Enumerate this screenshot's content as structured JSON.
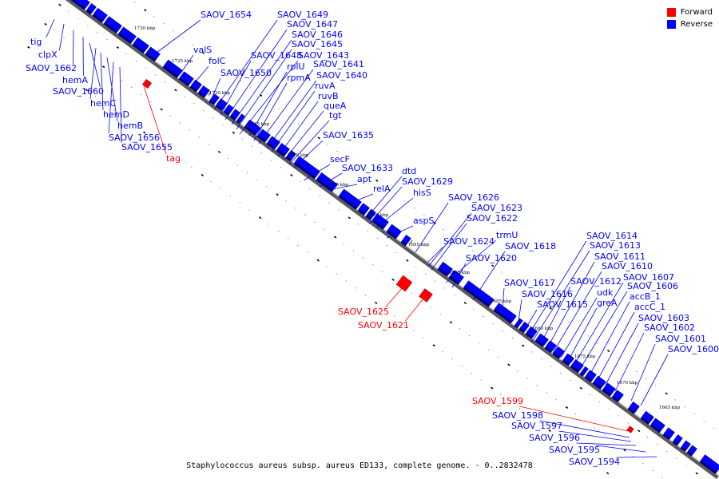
{
  "legend": {
    "forward_label": "Forward",
    "reverse_label": "Reverse",
    "forward_color": "#ff0000",
    "reverse_color": "#0000ff"
  },
  "caption": "Staphylococcus aureus subsp. aureus ED133, complete genome. - 0..2832478",
  "ticks": [
    "1730 kbp",
    "1725 kbp",
    "1720 kbp",
    "1715 kbp",
    "1710 kbp",
    "1705 kbp",
    "1700 kbp",
    "1695 kbp",
    "1690 kbp",
    "1685 kbp",
    "1680 kbp",
    "1675 kbp",
    "1670 kbp",
    "1665 kbp"
  ],
  "reverse_genes": [
    "tig",
    "clpX",
    "SAOV_1662",
    "hemA",
    "SAOV_1660",
    "hemC",
    "hemD",
    "hemB",
    "SAOV_1656",
    "SAOV_1655",
    "SAOV_1654",
    "valS",
    "folC",
    "SAOV_1650",
    "SAOV_1649",
    "SAOV_1648",
    "SAOV_1647",
    "SAOV_1646",
    "SAOV_1645",
    "SAOV_1643",
    "rplU",
    "rpmA",
    "SAOV_1641",
    "SAOV_1640",
    "ruvA",
    "ruvB",
    "queA",
    "tgt",
    "SAOV_1635",
    "secF",
    "SAOV_1633",
    "apt",
    "relA",
    "dtd",
    "SAOV_1629",
    "hisS",
    "aspS",
    "SAOV_1626",
    "SAOV_1624",
    "SAOV_1623",
    "SAOV_1622",
    "trmU",
    "SAOV_1620",
    "SAOV_1618",
    "SAOV_1617",
    "SAOV_1616",
    "SAOV_1615",
    "SAOV_1614",
    "SAOV_1613",
    "SAOV_1612",
    "SAOV_1611",
    "SAOV_1610",
    "udk",
    "greA",
    "SAOV_1607",
    "SAOV_1606",
    "accB_1",
    "accC_1",
    "SAOV_1603",
    "SAOV_1602",
    "SAOV_1601",
    "SAOV_1600",
    "SAOV_1598",
    "SAOV_1597",
    "SAOV_1596",
    "SAOV_1595",
    "SAOV_1594"
  ],
  "forward_genes": [
    "tag",
    "SAOV_1625",
    "SAOV_1621",
    "SAOV_1599"
  ]
}
